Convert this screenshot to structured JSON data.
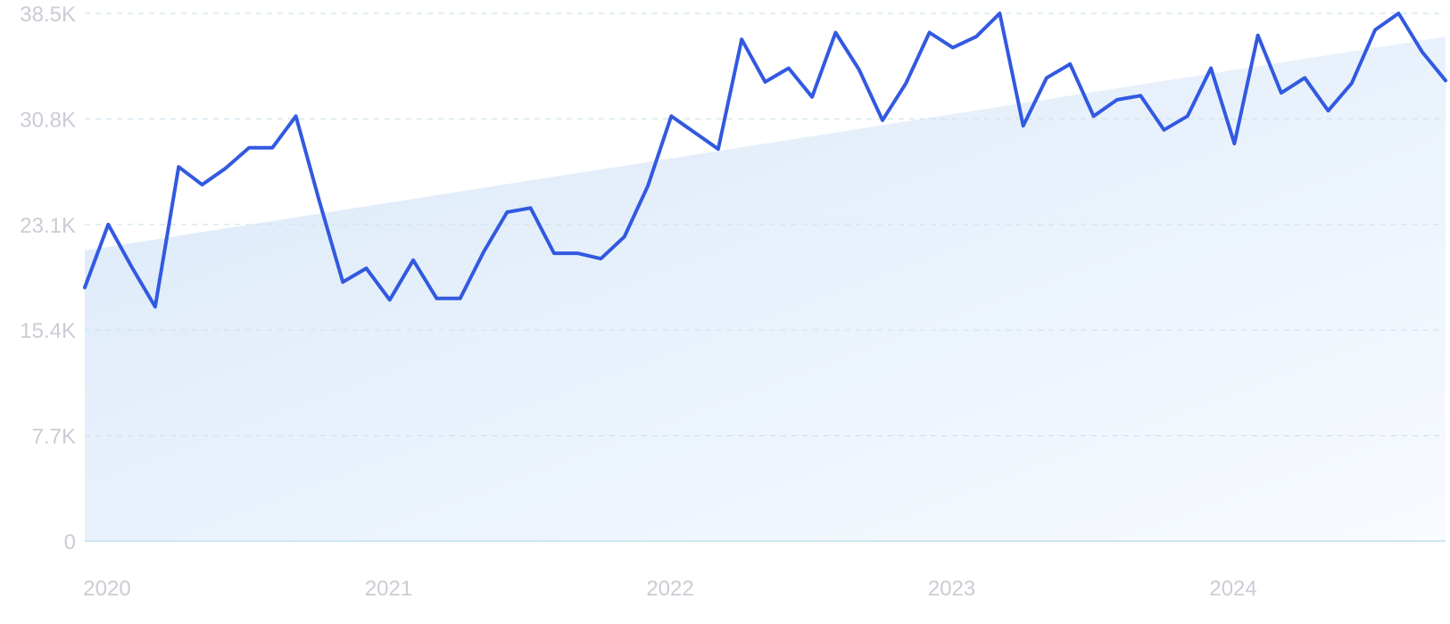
{
  "chart_data": {
    "type": "line",
    "title": "",
    "xlabel": "",
    "ylabel": "",
    "ylim": [
      0,
      38500
    ],
    "y_ticks": [
      0,
      7700,
      15400,
      23100,
      30800,
      38500
    ],
    "y_tick_labels": [
      "0",
      "7.7K",
      "15.4K",
      "23.1K",
      "30.8K",
      "38.5K"
    ],
    "x_tick_labels": [
      "2020",
      "2021",
      "2022",
      "2023",
      "2024"
    ],
    "grid": "horizontal dashed",
    "colors": {
      "line": "#3259e0",
      "trend_fill_start": "#d9e8f8",
      "trend_fill_end": "#f8fbff",
      "grid": "#cfe3ec",
      "tick_text": "#c9cdd4"
    },
    "series": [
      {
        "x": [
          "2020-01",
          "2020-02",
          "2020-03",
          "2020-04",
          "2020-05",
          "2020-06",
          "2020-07",
          "2020-08",
          "2020-09",
          "2020-10",
          "2020-11",
          "2020-12",
          "2021-01",
          "2021-02",
          "2021-03",
          "2021-04",
          "2021-05",
          "2021-06",
          "2021-07",
          "2021-08",
          "2021-09",
          "2021-10",
          "2021-11",
          "2021-12",
          "2022-01",
          "2022-02",
          "2022-03",
          "2022-04",
          "2022-05",
          "2022-06",
          "2022-07",
          "2022-08",
          "2022-09",
          "2022-10",
          "2022-11",
          "2022-12",
          "2023-01",
          "2023-02",
          "2023-03",
          "2023-04",
          "2023-05",
          "2023-06",
          "2023-07",
          "2023-08",
          "2023-09",
          "2023-10",
          "2023-11",
          "2023-12",
          "2024-01",
          "2024-02",
          "2024-03",
          "2024-04",
          "2024-05",
          "2024-06",
          "2024-07",
          "2024-08",
          "2024-09",
          "2024-10",
          "2024-11"
        ],
        "values": [
          18500,
          23100,
          20000,
          17100,
          27300,
          26000,
          27200,
          28700,
          28700,
          31000,
          24800,
          18900,
          19900,
          17600,
          20500,
          17700,
          17700,
          21100,
          24000,
          24300,
          21000,
          21000,
          20600,
          22200,
          25900,
          31000,
          29800,
          28600,
          36600,
          33500,
          34500,
          32400,
          37100,
          34400,
          30700,
          33400,
          37100,
          36000,
          36800,
          38500,
          30300,
          33800,
          34800,
          31000,
          32200,
          32500,
          30000,
          31000,
          34500,
          29000,
          36900,
          32700,
          33800,
          31400,
          33400,
          37300,
          38500,
          35700,
          33600
        ]
      }
    ],
    "trend": {
      "start": 21200,
      "end": 36800
    }
  }
}
